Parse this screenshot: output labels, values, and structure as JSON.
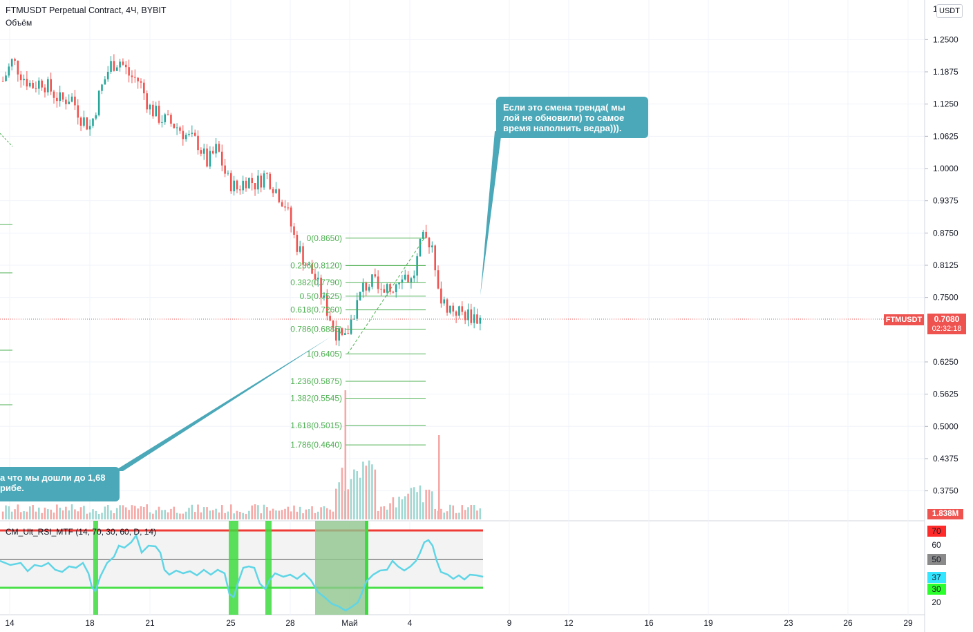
{
  "header": {
    "title": "FTMUSDT Perpetual Contract, 4Ч, BYBIT",
    "volume_label": "Объём"
  },
  "currency_button": "USDT",
  "price_axis": {
    "labels": [
      "1.2500",
      "1.1875",
      "1.1250",
      "1.0625",
      "1.0000",
      "0.9375",
      "0.8750",
      "0.8125",
      "0.7500",
      "0.6250",
      "0.5625",
      "0.5000",
      "0.4375",
      "0.3750"
    ]
  },
  "time_axis": {
    "labels": [
      "14",
      "18",
      "21",
      "25",
      "28",
      "Май",
      "4",
      "9",
      "12",
      "16",
      "19",
      "23",
      "26",
      "29"
    ]
  },
  "last_price": {
    "symbol": "FTMUSDT",
    "price": "0.7080",
    "countdown": "02:32:18"
  },
  "volume_value": "1.838M",
  "fib_levels": [
    {
      "label": "0(0.8650)",
      "value": 0.865
    },
    {
      "label": "0.236(0.8120)",
      "value": 0.812
    },
    {
      "label": "0.382(0.7790)",
      "value": 0.779
    },
    {
      "label": "0.5(0.7525)",
      "value": 0.7525
    },
    {
      "label": "0.618(0.7260)",
      "value": 0.726
    },
    {
      "label": "0.786(0.6885)",
      "value": 0.6885
    },
    {
      "label": "1(0.6405)",
      "value": 0.6405
    },
    {
      "label": "1.236(0.5875)",
      "value": 0.5875
    },
    {
      "label": "1.382(0.5545)",
      "value": 0.5545
    },
    {
      "label": "1.618(0.5015)",
      "value": 0.5015
    },
    {
      "label": "1.786(0.4640)",
      "value": 0.464
    }
  ],
  "annotations": {
    "right_note": "Если это смена тренда( мы лой не обновили) то самое время наполнить ведра))).",
    "left_note_line1": "а что мы дошли до 1,68",
    "left_note_line2": "рибе."
  },
  "rsi": {
    "label": "CM_Ult_RSI_MTF (14, 70, 30, 60, D, 14)",
    "upper": "70",
    "mid_label": "60",
    "middle": "50",
    "current": "37",
    "lower": "30",
    "bottom_label": "20"
  },
  "colors": {
    "up": "#26a69a",
    "down": "#ef5350",
    "fib": "#4caf50",
    "callout": "#4aa8b8",
    "rsi_line": "#5fd5e6"
  },
  "chart_data": {
    "type": "candlestick",
    "title": "FTMUSDT Perpetual Contract, 4Ч, BYBIT",
    "ylim": [
      0.34,
      1.29
    ],
    "series": [
      {
        "name": "FTMUSDT",
        "approx_closes": [
          1.17,
          1.21,
          1.18,
          1.16,
          1.17,
          1.15,
          1.13,
          1.14,
          1.1,
          1.08,
          1.15,
          1.2,
          1.21,
          1.18,
          1.17,
          1.12,
          1.1,
          1.09,
          1.08,
          1.06,
          1.05,
          1.01,
          1.04,
          0.98,
          0.96,
          0.98,
          0.97,
          0.99,
          0.96,
          0.93,
          0.86,
          0.82,
          0.79,
          0.74,
          0.69,
          0.66,
          0.72,
          0.77,
          0.78,
          0.75,
          0.77,
          0.8,
          0.78,
          0.86,
          0.86,
          0.74,
          0.73,
          0.72,
          0.715,
          0.708
        ]
      }
    ]
  }
}
